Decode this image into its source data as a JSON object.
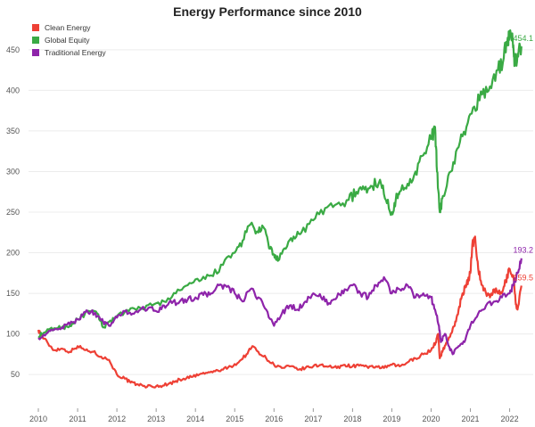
{
  "chart_data": {
    "type": "line",
    "title": "Energy Performance since 2010",
    "xlabel": "",
    "ylabel": "",
    "xlim": [
      2009.75,
      2022.6
    ],
    "ylim": [
      15,
      485
    ],
    "x_ticks": [
      "2010",
      "2011",
      "2012",
      "2013",
      "2014",
      "2015",
      "2016",
      "2017",
      "2018",
      "2019",
      "2020",
      "2021",
      "2022"
    ],
    "y_ticks": [
      "50",
      "100",
      "150",
      "200",
      "250",
      "300",
      "350",
      "400",
      "450"
    ],
    "legend_position": "top-left",
    "series": [
      {
        "name": "Clean Energy",
        "color": "#ee4035",
        "end_label": "159.5",
        "x": [
          2010.0,
          2010.1,
          2010.25,
          2010.4,
          2010.6,
          2010.8,
          2011.0,
          2011.2,
          2011.4,
          2011.6,
          2011.8,
          2012.0,
          2012.2,
          2012.35,
          2012.5,
          2012.7,
          2012.9,
          2013.1,
          2013.3,
          2013.5,
          2013.7,
          2013.9,
          2014.1,
          2014.3,
          2014.5,
          2014.7,
          2014.9,
          2015.1,
          2015.3,
          2015.45,
          2015.6,
          2015.8,
          2016.0,
          2016.2,
          2016.4,
          2016.6,
          2016.8,
          2017.0,
          2017.2,
          2017.4,
          2017.6,
          2017.8,
          2018.0,
          2018.2,
          2018.4,
          2018.6,
          2018.8,
          2019.0,
          2019.2,
          2019.4,
          2019.6,
          2019.8,
          2020.0,
          2020.12,
          2020.18,
          2020.22,
          2020.3,
          2020.4,
          2020.5,
          2020.6,
          2020.7,
          2020.8,
          2020.9,
          2021.0,
          2021.05,
          2021.12,
          2021.2,
          2021.3,
          2021.4,
          2021.5,
          2021.6,
          2021.7,
          2021.8,
          2021.9,
          2022.0,
          2022.1,
          2022.15,
          2022.2,
          2022.3
        ],
        "values": [
          105,
          97,
          88,
          80,
          82,
          78,
          85,
          80,
          78,
          72,
          68,
          50,
          45,
          40,
          38,
          36,
          35,
          36,
          38,
          42,
          45,
          47,
          50,
          52,
          54,
          56,
          60,
          65,
          75,
          85,
          78,
          70,
          62,
          58,
          60,
          56,
          58,
          60,
          62,
          60,
          58,
          62,
          60,
          62,
          58,
          60,
          58,
          62,
          60,
          65,
          70,
          75,
          80,
          90,
          100,
          70,
          80,
          90,
          100,
          110,
          130,
          150,
          160,
          175,
          210,
          220,
          180,
          160,
          150,
          145,
          155,
          150,
          150,
          165,
          180,
          170,
          140,
          130,
          159.5
        ]
      },
      {
        "name": "Global Equity",
        "color": "#3aaa44",
        "end_label": "454.1",
        "x": [
          2010.0,
          2010.2,
          2010.4,
          2010.6,
          2010.8,
          2011.0,
          2011.3,
          2011.5,
          2011.65,
          2011.8,
          2012.0,
          2012.3,
          2012.6,
          2012.9,
          2013.2,
          2013.5,
          2013.8,
          2014.1,
          2014.4,
          2014.7,
          2015.0,
          2015.2,
          2015.4,
          2015.6,
          2015.75,
          2015.9,
          2016.0,
          2016.1,
          2016.3,
          2016.5,
          2016.7,
          2017.0,
          2017.3,
          2017.6,
          2017.9,
          2018.1,
          2018.3,
          2018.5,
          2018.7,
          2018.85,
          2019.0,
          2019.1,
          2019.2,
          2019.4,
          2019.6,
          2019.8,
          2020.0,
          2020.1,
          2020.15,
          2020.22,
          2020.3,
          2020.5,
          2020.7,
          2020.9,
          2021.1,
          2021.3,
          2021.5,
          2021.7,
          2021.85,
          2021.95,
          2022.0,
          2022.08,
          2022.12,
          2022.2,
          2022.3
        ],
        "values": [
          97,
          103,
          107,
          108,
          110,
          118,
          128,
          125,
          108,
          115,
          122,
          128,
          132,
          135,
          140,
          150,
          160,
          165,
          172,
          185,
          200,
          215,
          235,
          225,
          230,
          205,
          198,
          190,
          205,
          220,
          225,
          240,
          255,
          260,
          265,
          275,
          278,
          282,
          290,
          265,
          250,
          265,
          275,
          285,
          300,
          320,
          340,
          355,
          300,
          250,
          270,
          300,
          330,
          355,
          380,
          395,
          405,
          425,
          440,
          465,
          470,
          460,
          430,
          445,
          454.1
        ]
      },
      {
        "name": "Traditional Energy",
        "color": "#8e24aa",
        "end_label": "193.2",
        "x": [
          2010.0,
          2010.2,
          2010.4,
          2010.6,
          2010.8,
          2011.0,
          2011.2,
          2011.35,
          2011.5,
          2011.65,
          2011.8,
          2012.0,
          2012.2,
          2012.4,
          2012.6,
          2012.8,
          2013.0,
          2013.2,
          2013.4,
          2013.6,
          2013.8,
          2014.0,
          2014.2,
          2014.4,
          2014.6,
          2014.8,
          2015.0,
          2015.2,
          2015.4,
          2015.6,
          2015.8,
          2016.0,
          2016.2,
          2016.4,
          2016.6,
          2016.8,
          2017.0,
          2017.2,
          2017.4,
          2017.6,
          2017.8,
          2018.0,
          2018.2,
          2018.4,
          2018.6,
          2018.8,
          2019.0,
          2019.2,
          2019.4,
          2019.6,
          2019.8,
          2020.0,
          2020.1,
          2020.2,
          2020.25,
          2020.35,
          2020.45,
          2020.55,
          2020.7,
          2020.85,
          2021.0,
          2021.2,
          2021.4,
          2021.6,
          2021.8,
          2022.0,
          2022.1,
          2022.2,
          2022.3
        ],
        "values": [
          95,
          100,
          105,
          108,
          112,
          118,
          127,
          128,
          122,
          115,
          110,
          120,
          128,
          125,
          130,
          132,
          128,
          135,
          138,
          140,
          142,
          145,
          148,
          150,
          160,
          158,
          150,
          140,
          155,
          145,
          130,
          110,
          125,
          135,
          130,
          140,
          150,
          145,
          138,
          145,
          155,
          160,
          150,
          145,
          160,
          170,
          150,
          155,
          160,
          145,
          150,
          145,
          130,
          110,
          90,
          100,
          85,
          75,
          85,
          90,
          110,
          125,
          135,
          140,
          145,
          150,
          160,
          175,
          193.2
        ]
      }
    ]
  }
}
